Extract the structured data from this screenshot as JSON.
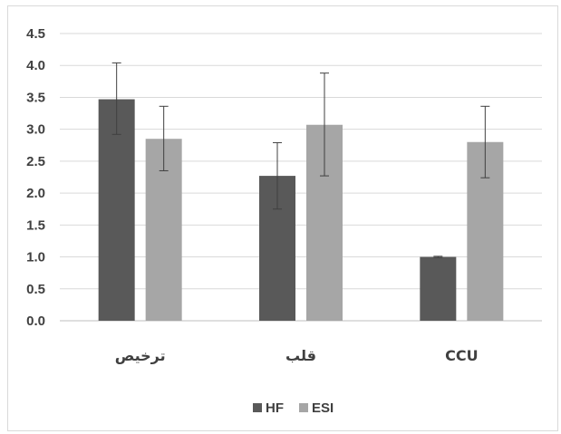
{
  "chart_data": {
    "type": "bar",
    "categories": [
      "ترخیص",
      "قلب",
      "CCU"
    ],
    "series": [
      {
        "name": "HF",
        "color": "#595959",
        "values": [
          3.47,
          2.27,
          1.0
        ],
        "error_low": [
          2.92,
          1.75,
          0.99
        ],
        "error_high": [
          4.04,
          2.79,
          1.01
        ]
      },
      {
        "name": "ESI",
        "color": "#a6a6a6",
        "values": [
          2.85,
          3.07,
          2.8
        ],
        "error_low": [
          2.35,
          2.27,
          2.24
        ],
        "error_high": [
          3.36,
          3.88,
          3.36
        ]
      }
    ],
    "ylim": [
      0,
      4.5
    ],
    "yticks": [
      "0.0",
      "0.5",
      "1.0",
      "1.5",
      "2.0",
      "2.5",
      "3.0",
      "3.5",
      "4.0",
      "4.5"
    ],
    "grid": true,
    "legend_position": "bottom",
    "title": "",
    "xlabel": "",
    "ylabel": ""
  }
}
